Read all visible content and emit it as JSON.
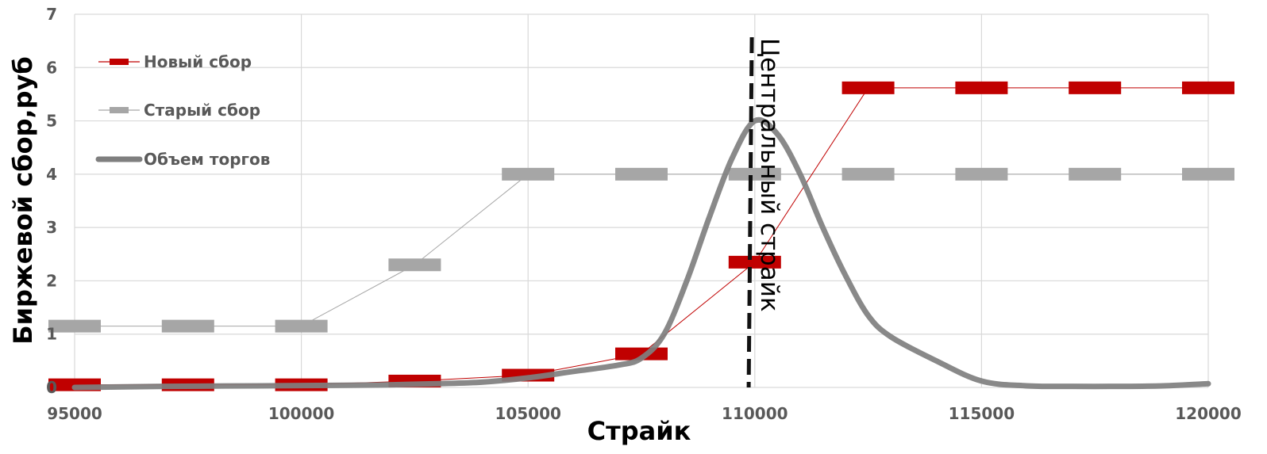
{
  "chart_data": {
    "type": "line",
    "xlabel": "Страйк",
    "ylabel": "Биржевой сбор,руб",
    "xlim": [
      95000,
      120000
    ],
    "ylim": [
      0,
      7
    ],
    "x_ticks": [
      95000,
      100000,
      105000,
      110000,
      115000,
      120000
    ],
    "x_tick_labels": [
      "95000",
      "100000",
      "105000",
      "110000",
      "115000",
      "120000"
    ],
    "y_ticks": [
      0,
      1,
      2,
      3,
      4,
      5,
      6,
      7
    ],
    "y_tick_labels": [
      "0",
      "1",
      "2",
      "3",
      "4",
      "5",
      "6",
      "7"
    ],
    "grid": true,
    "legend_position": "top-left",
    "series": [
      {
        "name": "Новый сбор",
        "color": "#c00000",
        "style": "thin line with thick dash markers",
        "x": [
          95000,
          97500,
          100000,
          102500,
          105000,
          107500,
          110000,
          112500,
          115000,
          117500,
          120000
        ],
        "values": [
          0.05,
          0.05,
          0.05,
          0.12,
          0.23,
          0.63,
          2.35,
          5.62,
          5.62,
          5.62,
          5.62
        ]
      },
      {
        "name": "Старый сбор",
        "color": "#a6a6a6",
        "style": "thin line with thick dash markers",
        "x": [
          95000,
          97500,
          100000,
          102500,
          105000,
          107500,
          110000,
          112500,
          115000,
          117500,
          120000
        ],
        "values": [
          1.15,
          1.15,
          1.15,
          2.3,
          4.0,
          4.0,
          4.0,
          4.0,
          4.0,
          4.0,
          4.0
        ]
      },
      {
        "name": "Объем торгов",
        "color": "#7f7f7f",
        "style": "thick smooth line",
        "x": [
          95000,
          97000,
          99000,
          101000,
          102000,
          103000,
          104000,
          105000,
          106000,
          107000,
          107500,
          108000,
          108500,
          109000,
          109500,
          110000,
          110500,
          111000,
          111500,
          112000,
          112500,
          113000,
          114000,
          115000,
          116000,
          117000,
          118000,
          119000,
          120000
        ],
        "values": [
          0.0,
          0.02,
          0.03,
          0.04,
          0.05,
          0.07,
          0.1,
          0.18,
          0.3,
          0.42,
          0.55,
          1.0,
          2.0,
          3.2,
          4.3,
          5.0,
          4.75,
          4.0,
          3.0,
          2.1,
          1.35,
          0.95,
          0.5,
          0.12,
          0.03,
          0.02,
          0.02,
          0.03,
          0.07
        ]
      }
    ],
    "vertical_line": {
      "x": 109900,
      "label": "Центральный страйк",
      "color": "#111111",
      "style": "dashed"
    }
  }
}
